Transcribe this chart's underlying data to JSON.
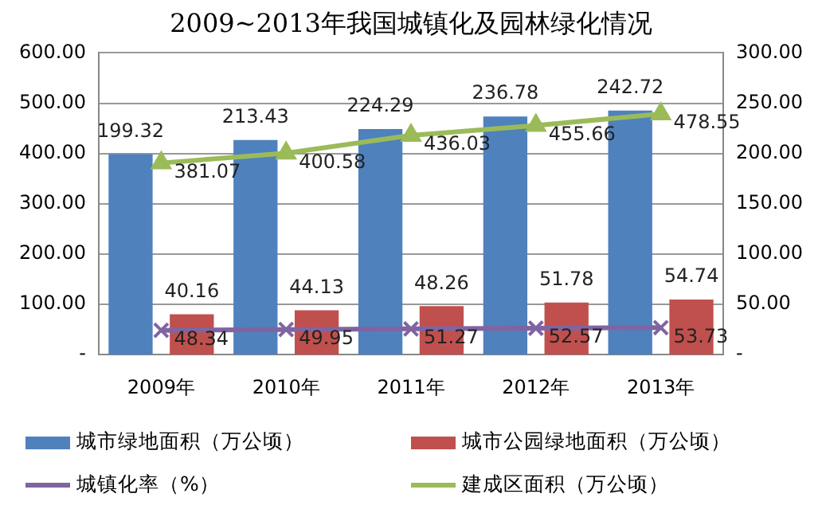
{
  "chart_data": {
    "type": "bar",
    "title": "2009~2013年我国城镇化及园林绿化情况",
    "categories": [
      "2009年",
      "2010年",
      "2011年",
      "2012年",
      "2013年"
    ],
    "series": [
      {
        "name": "城市绿地面积（万公顷）",
        "color": "#4f81bd",
        "values": [
          199.32,
          213.43,
          224.29,
          236.78,
          242.72
        ],
        "axis": "y2"
      },
      {
        "name": "城市公园绿地面积（万公顷）",
        "color": "#c0504d",
        "values": [
          40.16,
          44.13,
          48.26,
          51.78,
          54.74
        ],
        "axis": "y2"
      },
      {
        "name": "城镇化率（%）",
        "color": "#8064a2",
        "type": "line",
        "marker": "cross",
        "values": [
          48.34,
          49.95,
          51.27,
          52.57,
          53.73
        ]
      },
      {
        "name": "建成区面积（万公顷）",
        "color": "#9bbb59",
        "type": "line",
        "marker": "triangle",
        "values": [
          381.07,
          400.58,
          436.03,
          455.66,
          478.55
        ]
      }
    ],
    "ylim": [
      0,
      600
    ],
    "yticks": [
      {
        "value": 0,
        "label": "-"
      },
      {
        "value": 100,
        "label": "100.00"
      },
      {
        "value": 200,
        "label": "200.00"
      },
      {
        "value": 300,
        "label": "300.00"
      },
      {
        "value": 400,
        "label": "400.00"
      },
      {
        "value": 500,
        "label": "500.00"
      },
      {
        "value": 600,
        "label": "600.00"
      }
    ],
    "y2lim": [
      0,
      300
    ],
    "y2ticks": [
      {
        "value": 0,
        "label": "-"
      },
      {
        "value": 50,
        "label": "50.00"
      },
      {
        "value": 100,
        "label": "100.00"
      },
      {
        "value": 150,
        "label": "150.00"
      },
      {
        "value": 200,
        "label": "200.00"
      },
      {
        "value": 250,
        "label": "250.00"
      },
      {
        "value": 300,
        "label": "300.00"
      }
    ],
    "grid": "y",
    "legend": "bottom",
    "data_labels": true
  }
}
